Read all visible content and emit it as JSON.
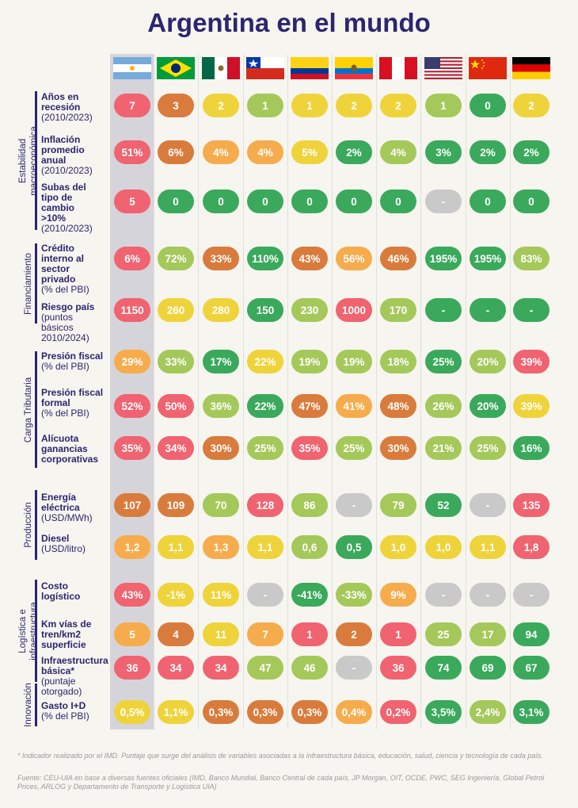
{
  "title": "Argentina en el mundo",
  "countries": [
    {
      "name": "Argentina",
      "flag": "argentina-flag"
    },
    {
      "name": "Brasil",
      "flag": "brazil-flag"
    },
    {
      "name": "México",
      "flag": "mexico-flag"
    },
    {
      "name": "Chile",
      "flag": "chile-flag"
    },
    {
      "name": "Colombia",
      "flag": "colombia-flag"
    },
    {
      "name": "Ecuador",
      "flag": "ecuador-flag"
    },
    {
      "name": "Perú",
      "flag": "peru-flag"
    },
    {
      "name": "Estados Unidos",
      "flag": "usa-flag"
    },
    {
      "name": "China",
      "flag": "china-flag"
    },
    {
      "name": "Alemania",
      "flag": "germany-flag"
    }
  ],
  "colors": {
    "red": "#f06370",
    "brown": "#d97b3c",
    "yellow": "#efd33a",
    "olive": "#a5c85a",
    "green": "#3aa95c",
    "orange": "#f6ac4c",
    "gray": "#c9c9c9",
    "title": "#2a2670"
  },
  "groups": [
    {
      "id": "estabilidad",
      "label": [
        "Estabilidad",
        "macroeconómica"
      ]
    },
    {
      "id": "financiamiento",
      "label": [
        "Financiamiento"
      ]
    },
    {
      "id": "carga",
      "label": [
        "Carga Tributaria"
      ]
    },
    {
      "id": "produccion",
      "label": [
        "Producción"
      ]
    },
    {
      "id": "logistica",
      "label": [
        "Logística e",
        "infraestructura"
      ]
    },
    {
      "id": "innovacion",
      "label": [
        "Innovación"
      ]
    }
  ],
  "rows": [
    {
      "bold": [
        "Años en",
        "recesión"
      ],
      "normal": [
        "(2010/2023)"
      ],
      "values": [
        "7",
        "3",
        "2",
        "1",
        "1",
        "2",
        "2",
        "1",
        "0",
        "2"
      ],
      "colors": [
        "red",
        "brown",
        "yellow",
        "olive",
        "yellow",
        "yellow",
        "yellow",
        "olive",
        "green",
        "yellow"
      ]
    },
    {
      "bold": [
        "Inflación",
        "promedio",
        "anual"
      ],
      "normal": [
        "(2010/2023)"
      ],
      "values": [
        "51%",
        "6%",
        "4%",
        "4%",
        "5%",
        "2%",
        "4%",
        "3%",
        "2%",
        "2%"
      ],
      "colors": [
        "red",
        "brown",
        "orange",
        "orange",
        "yellow",
        "green",
        "olive",
        "green",
        "green",
        "green"
      ]
    },
    {
      "bold": [
        "Subas del",
        "tipo de",
        "cambio",
        ">10%"
      ],
      "normal": [
        "(2010/2023)"
      ],
      "values": [
        "5",
        "0",
        "0",
        "0",
        "0",
        "0",
        "0",
        "-",
        "0",
        "0"
      ],
      "colors": [
        "red",
        "green",
        "green",
        "green",
        "green",
        "green",
        "green",
        "gray",
        "green",
        "green"
      ]
    },
    {
      "bold": [
        "Crédito",
        "interno al",
        "sector",
        "privado"
      ],
      "normal": [
        "(% del PBI)"
      ],
      "values": [
        "6%",
        "72%",
        "33%",
        "110%",
        "43%",
        "56%",
        "46%",
        "195%",
        "195%",
        "83%"
      ],
      "colors": [
        "red",
        "olive",
        "brown",
        "green",
        "brown",
        "orange",
        "brown",
        "green",
        "green",
        "olive"
      ]
    },
    {
      "bold": [
        "Riesgo país"
      ],
      "normal": [
        "(puntos básicos",
        "2010/2024)"
      ],
      "values": [
        "1150",
        "260",
        "280",
        "150",
        "230",
        "1000",
        "170",
        "-",
        "-",
        "-"
      ],
      "colors": [
        "red",
        "yellow",
        "yellow",
        "green",
        "olive",
        "red",
        "olive",
        "green",
        "green",
        "green"
      ]
    },
    {
      "bold": [
        "Presión fiscal"
      ],
      "normal": [
        "(% del PBI)"
      ],
      "values": [
        "29%",
        "33%",
        "17%",
        "22%",
        "19%",
        "19%",
        "18%",
        "25%",
        "20%",
        "39%"
      ],
      "colors": [
        "orange",
        "olive",
        "green",
        "yellow",
        "olive",
        "olive",
        "olive",
        "green",
        "olive",
        "red"
      ]
    },
    {
      "bold": [
        "Presión fiscal",
        "formal"
      ],
      "normal": [
        "(% del PBI)"
      ],
      "values": [
        "52%",
        "50%",
        "36%",
        "22%",
        "47%",
        "41%",
        "48%",
        "26%",
        "20%",
        "39%"
      ],
      "colors": [
        "red",
        "red",
        "olive",
        "green",
        "brown",
        "orange",
        "brown",
        "olive",
        "green",
        "yellow"
      ]
    },
    {
      "bold": [
        "Alícuota",
        "ganancias",
        "corporativas"
      ],
      "normal": [],
      "values": [
        "35%",
        "34%",
        "30%",
        "25%",
        "35%",
        "25%",
        "30%",
        "21%",
        "25%",
        "16%"
      ],
      "colors": [
        "red",
        "red",
        "brown",
        "olive",
        "red",
        "olive",
        "brown",
        "olive",
        "olive",
        "green"
      ]
    },
    {
      "bold": [
        "Energía",
        "eléctrica"
      ],
      "normal": [
        "(USD/MWh)"
      ],
      "values": [
        "107",
        "109",
        "70",
        "128",
        "86",
        "-",
        "79",
        "52",
        "-",
        "135"
      ],
      "colors": [
        "brown",
        "brown",
        "olive",
        "red",
        "olive",
        "gray",
        "olive",
        "green",
        "gray",
        "red"
      ]
    },
    {
      "bold": [
        "Diesel"
      ],
      "normal": [
        "(USD/litro)"
      ],
      "values": [
        "1,2",
        "1,1",
        "1,3",
        "1,1",
        "0,6",
        "0,5",
        "1,0",
        "1,0",
        "1,1",
        "1,8"
      ],
      "colors": [
        "orange",
        "yellow",
        "orange",
        "yellow",
        "olive",
        "green",
        "yellow",
        "yellow",
        "yellow",
        "red"
      ]
    },
    {
      "bold": [
        "Costo",
        "logístico"
      ],
      "normal": [],
      "values": [
        "43%",
        "-1%",
        "11%",
        "-",
        "-41%",
        "-33%",
        "9%",
        "-",
        "-",
        "-"
      ],
      "colors": [
        "red",
        "yellow",
        "yellow",
        "gray",
        "green",
        "olive",
        "orange",
        "gray",
        "gray",
        "gray"
      ]
    },
    {
      "bold": [
        "Km vías de",
        "tren/km2",
        "superficie"
      ],
      "normal": [],
      "values": [
        "5",
        "4",
        "11",
        "7",
        "1",
        "2",
        "1",
        "25",
        "17",
        "94"
      ],
      "colors": [
        "orange",
        "brown",
        "yellow",
        "orange",
        "red",
        "brown",
        "red",
        "olive",
        "olive",
        "green"
      ]
    },
    {
      "bold": [
        "Infraestructura",
        "básica*"
      ],
      "normal": [
        "(puntaje",
        "otorgado)"
      ],
      "values": [
        "36",
        "34",
        "34",
        "47",
        "46",
        "-",
        "36",
        "74",
        "69",
        "67"
      ],
      "colors": [
        "red",
        "red",
        "red",
        "olive",
        "olive",
        "gray",
        "red",
        "green",
        "green",
        "green"
      ]
    },
    {
      "bold": [
        "Gasto I+D"
      ],
      "normal": [
        "(% del PBI)"
      ],
      "values": [
        "0,5%",
        "1,1%",
        "0,3%",
        "0,3%",
        "0,3%",
        "0,4%",
        "0,2%",
        "3,5%",
        "2,4%",
        "3,1%"
      ],
      "colors": [
        "yellow",
        "yellow",
        "brown",
        "brown",
        "brown",
        "orange",
        "red",
        "green",
        "olive",
        "green"
      ]
    }
  ],
  "footnote": "*  Indicador realizado por el IMD. Puntaje que surge del análisis de variables asociadas a la infraestructura básica, educación, salud, ciencia y tecnología de cada país.",
  "source": "Fuente: CEU-UIA en base a diversas fuentes oficiales (IMD, Banco Mundial, Banco Central de cada país, JP Morgan, OIT, OCDE, PWC, SEG Ingeniería, Global Petrol Prices, ARLOG y Departamento de Transporte y Logística UIA)"
}
